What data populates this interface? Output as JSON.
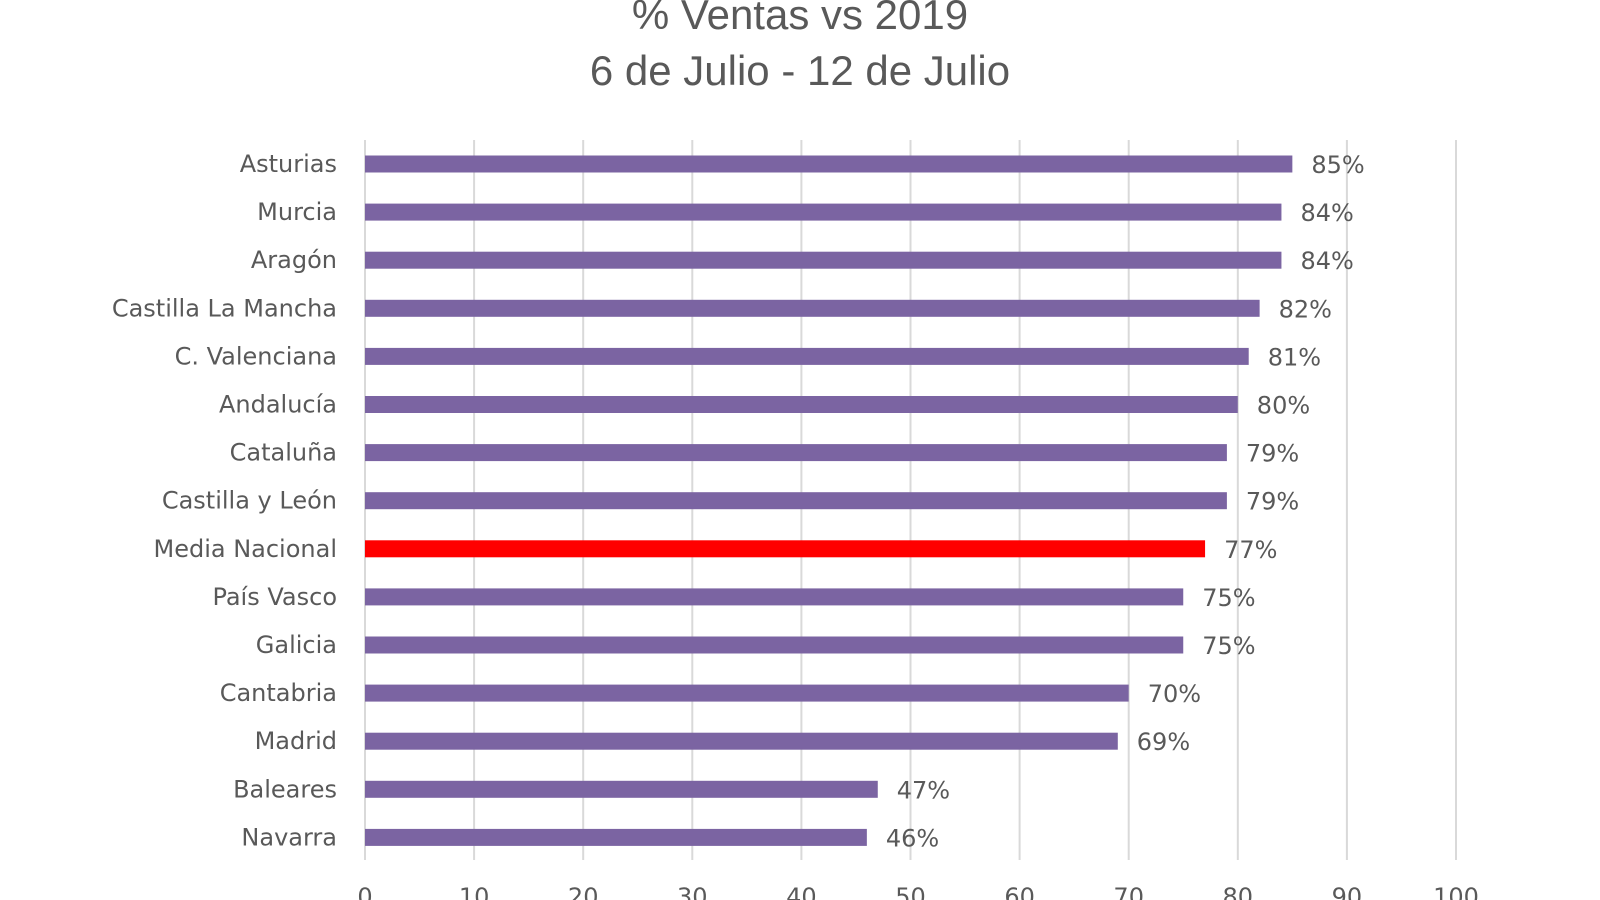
{
  "chart_data": {
    "type": "bar",
    "orientation": "horizontal",
    "title": "% Ventas vs 2019",
    "subtitle": "6 de Julio - 12 de Julio",
    "xlabel": "",
    "ylabel": "",
    "xlim": [
      0,
      100
    ],
    "x_ticks": [
      "0",
      "10",
      "20",
      "30",
      "40",
      "50",
      "60",
      "70",
      "80",
      "90",
      "100"
    ],
    "grid": true,
    "legend": "none",
    "bar_color": "#7B64A2",
    "highlight_color": "#FF0000",
    "highlight_category": "Media Nacional",
    "categories": [
      "Asturias",
      "Murcia",
      "Aragón",
      "Castilla La Mancha",
      "C. Valenciana",
      "Andalucía",
      "Cataluña",
      "Castilla y León",
      "Media Nacional",
      "País Vasco",
      "Galicia",
      "Cantabria",
      "Madrid",
      "Baleares",
      "Navarra"
    ],
    "values": [
      85,
      84,
      84,
      82,
      81,
      80,
      79,
      79,
      77,
      75,
      75,
      70,
      69,
      47,
      46
    ],
    "data_labels": [
      "85%",
      "84%",
      "84%",
      "82%",
      "81%",
      "80%",
      "79%",
      "79%",
      "77%",
      "75%",
      "75%",
      "70%",
      "69%",
      "47%",
      "46%"
    ]
  }
}
